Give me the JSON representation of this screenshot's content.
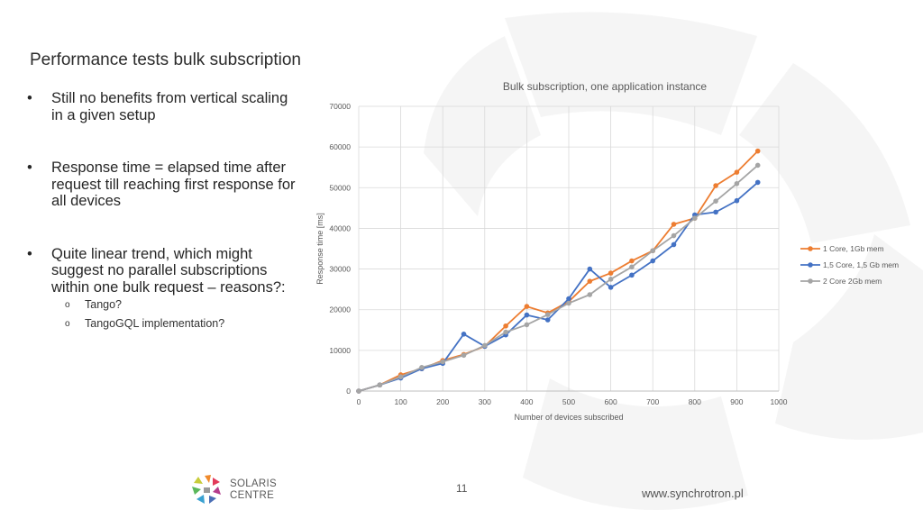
{
  "slide": {
    "title": "Performance tests bulk subscription",
    "bullets": [
      "Still no benefits from vertical scaling in a given setup",
      "Response time = elapsed time after request till reaching first response for all devices",
      "Quite linear trend, which might suggest no parallel subscriptions within one bulk request – reasons?:"
    ],
    "sub_bullets": [
      "Tango?",
      "TangoGQL implementation?"
    ],
    "bullet_symbol": "•",
    "sub_bullet_symbol": "o",
    "page_number": "11",
    "website": "www.synchrotron.pl",
    "logo": {
      "line1": "SOLARIS",
      "line2": "CENTRE"
    }
  },
  "chart_data": {
    "type": "line",
    "title": "Bulk subscription, one application instance",
    "xlabel": "Number of devices subscribed",
    "ylabel": "Response time [ms]",
    "xlim": [
      0,
      1000
    ],
    "ylim": [
      0,
      70000
    ],
    "xticks": [
      0,
      100,
      200,
      300,
      400,
      500,
      600,
      700,
      800,
      900,
      1000
    ],
    "yticks": [
      0,
      10000,
      20000,
      30000,
      40000,
      50000,
      60000,
      70000
    ],
    "grid": true,
    "legend": "right",
    "x": [
      0,
      50,
      100,
      150,
      200,
      250,
      300,
      350,
      400,
      450,
      500,
      550,
      600,
      650,
      700,
      750,
      800,
      850,
      900,
      950
    ],
    "series": [
      {
        "name": "1 Core, 1Gb mem",
        "color": "#ed7d31",
        "values": [
          0,
          1500,
          4000,
          5500,
          7500,
          9000,
          11000,
          16000,
          20800,
          19200,
          22000,
          27000,
          29000,
          32000,
          34500,
          41000,
          42500,
          50500,
          53800,
          59000
        ]
      },
      {
        "name": "1,5 Core, 1,5 Gb mem",
        "color": "#4472c4",
        "values": [
          0,
          1500,
          3200,
          5500,
          6800,
          14000,
          11000,
          13800,
          18700,
          17500,
          22700,
          30000,
          25500,
          28500,
          32000,
          36000,
          43300,
          44000,
          46800,
          51300
        ]
      },
      {
        "name": "2 Core 2Gb mem",
        "color": "#a5a5a5",
        "values": [
          0,
          1500,
          3500,
          5800,
          7200,
          8800,
          11200,
          14500,
          16300,
          18800,
          21600,
          23700,
          27500,
          30500,
          34500,
          38200,
          42500,
          46700,
          51000,
          55500
        ]
      }
    ]
  }
}
